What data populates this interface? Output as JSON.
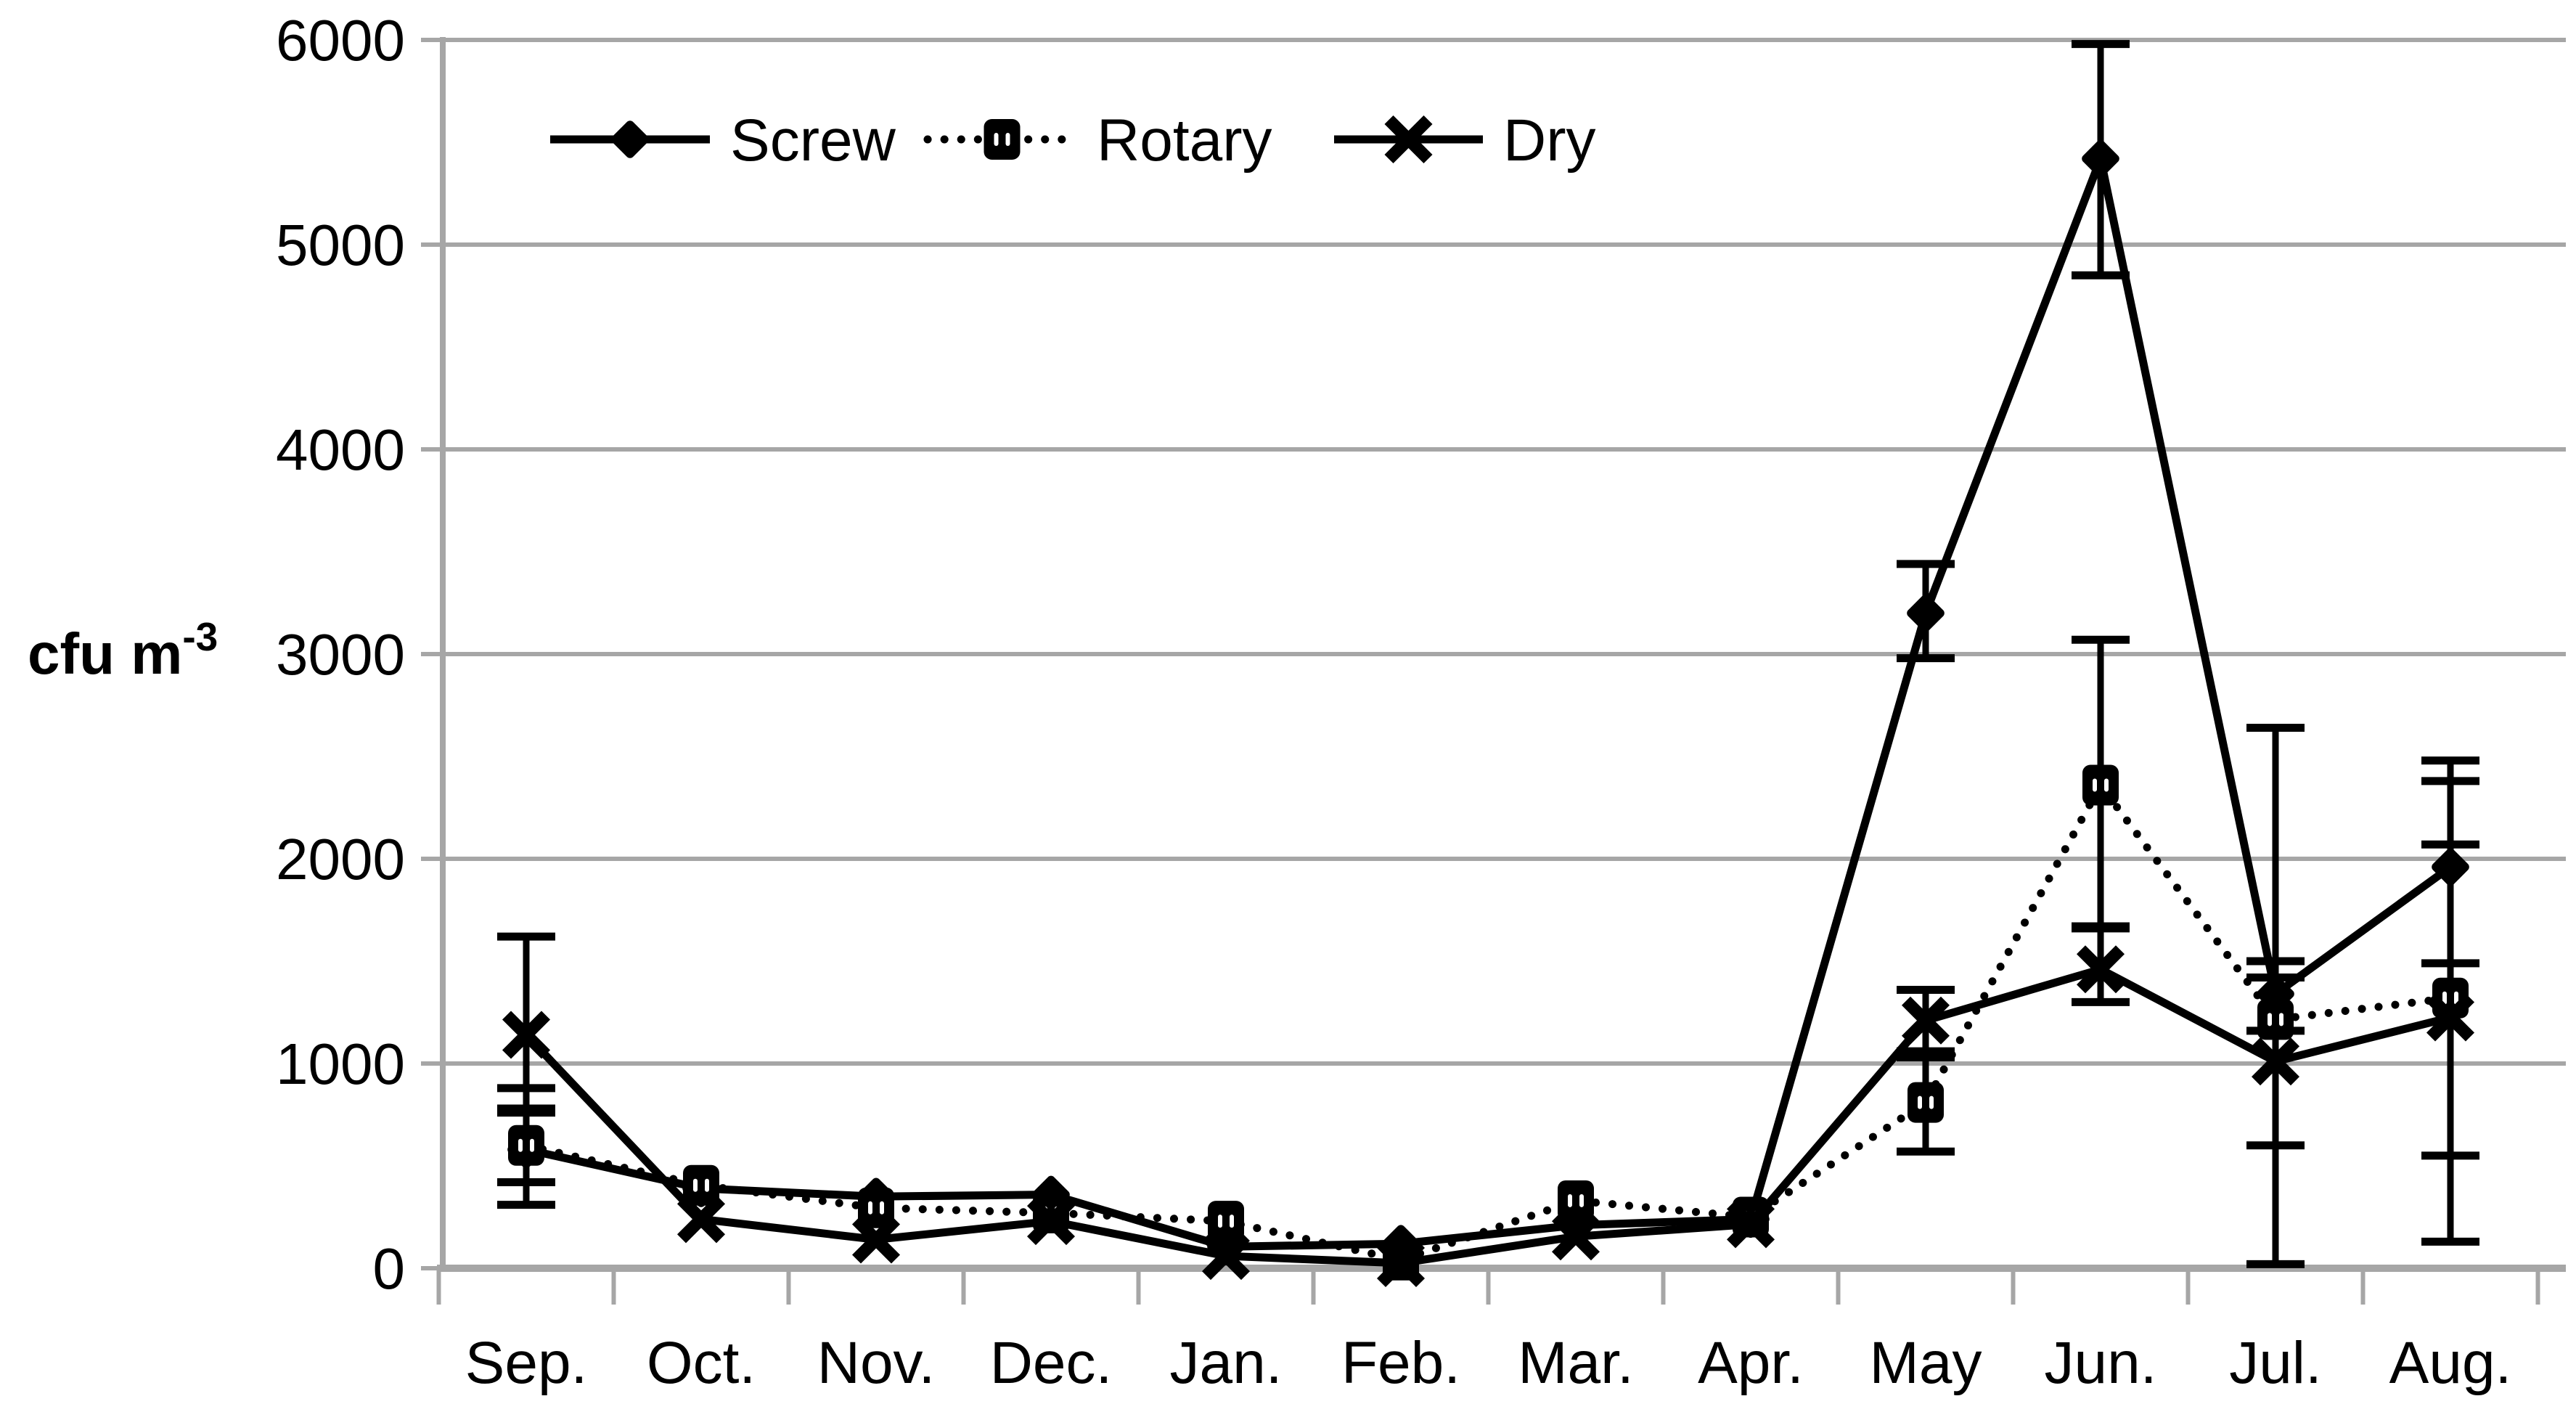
{
  "chart_data": {
    "type": "line",
    "title": "",
    "xlabel": "",
    "ylabel": {
      "text": "cfu m",
      "superscript": "-3"
    },
    "ylim": [
      0,
      6000
    ],
    "y_ticks": [
      0,
      1000,
      2000,
      3000,
      4000,
      5000,
      6000
    ],
    "grid": "horizontal",
    "legend": {
      "position": "top-left-inside"
    },
    "categories": [
      "Sep.",
      "Oct.",
      "Nov.",
      "Dec.",
      "Jan.",
      "Feb.",
      "Mar.",
      "Apr.",
      "May",
      "Jun.",
      "Jul.",
      "Aug."
    ],
    "series": [
      {
        "name": "Screw",
        "marker": "diamond",
        "line_style": "solid",
        "values": [
          580,
          390,
          350,
          360,
          105,
          120,
          210,
          240,
          3200,
          5420,
          1340,
          1960
        ],
        "err_lo": [
          420,
          null,
          null,
          null,
          null,
          null,
          null,
          null,
          2980,
          4850,
          1160,
          1490
        ],
        "err_hi": [
          760,
          null,
          null,
          null,
          null,
          null,
          null,
          null,
          3440,
          5980,
          1500,
          2480
        ]
      },
      {
        "name": "Rotary",
        "marker": "square",
        "line_style": "dotted",
        "values": [
          600,
          405,
          295,
          270,
          230,
          40,
          330,
          250,
          810,
          2360,
          1215,
          1320
        ],
        "err_lo": [
          310,
          null,
          null,
          null,
          null,
          null,
          null,
          null,
          570,
          1670,
          20,
          550
        ],
        "err_hi": [
          880,
          null,
          null,
          null,
          null,
          null,
          null,
          null,
          1030,
          3070,
          2640,
          2380
        ]
      },
      {
        "name": "Dry",
        "marker": "x",
        "line_style": "solid",
        "values": [
          1140,
          240,
          140,
          230,
          60,
          25,
          155,
          215,
          1210,
          1460,
          1010,
          1225
        ],
        "err_lo": [
          780,
          null,
          null,
          null,
          null,
          null,
          null,
          null,
          1060,
          1300,
          600,
          130
        ],
        "err_hi": [
          1620,
          null,
          null,
          null,
          null,
          null,
          null,
          null,
          1360,
          1660,
          1420,
          2070
        ]
      }
    ],
    "colors": {
      "series": "#000000",
      "grid": "#a6a6a6",
      "axis": "#a6a6a6",
      "background": "#ffffff"
    }
  }
}
